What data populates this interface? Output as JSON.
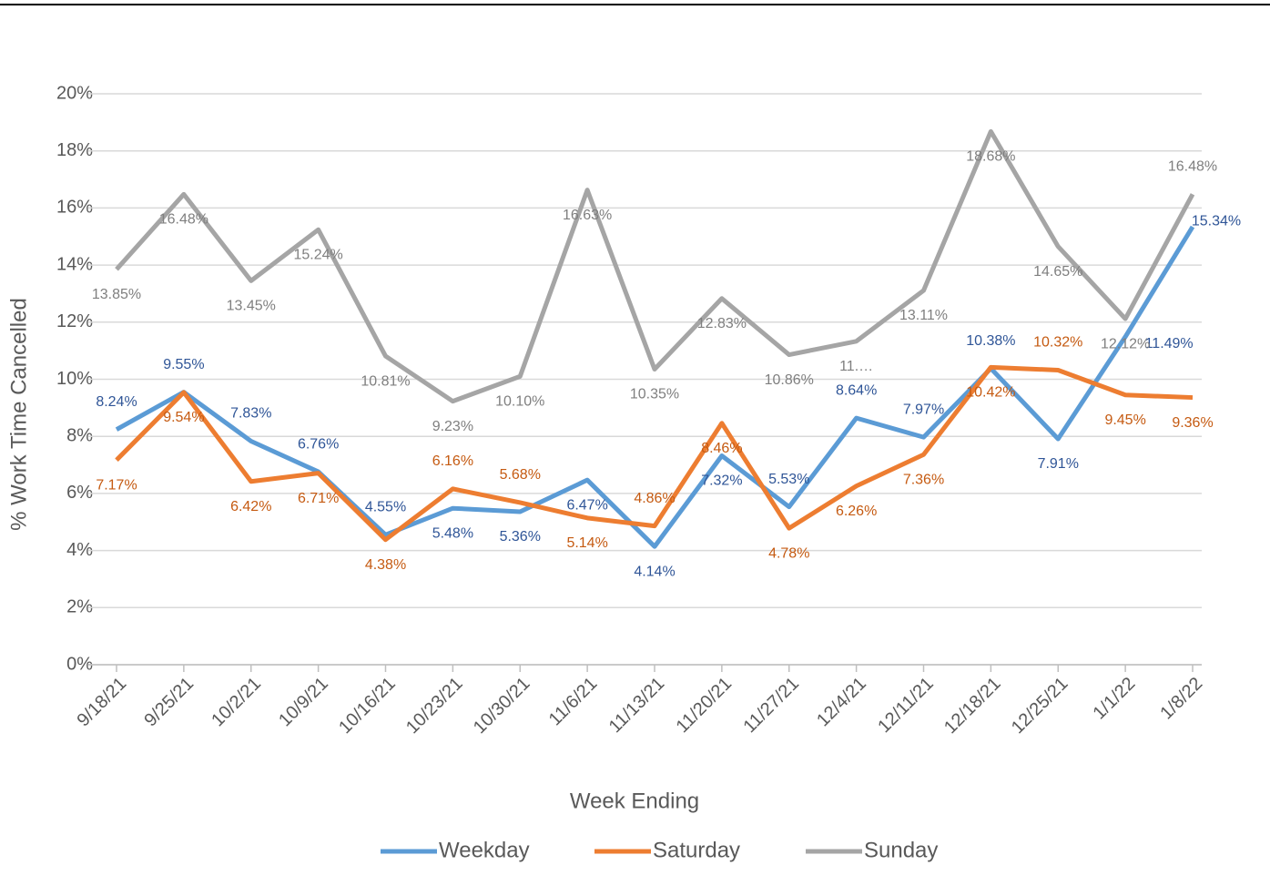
{
  "chart_data": {
    "type": "line",
    "x_label": "Week Ending",
    "y_label": "% Work Time Cancelled",
    "categories": [
      "9/18/21",
      "9/25/21",
      "10/2/21",
      "10/9/21",
      "10/16/21",
      "10/23/21",
      "10/30/21",
      "11/6/21",
      "11/13/21",
      "11/20/21",
      "11/27/21",
      "12/4/21",
      "12/11/21",
      "12/18/21",
      "12/25/21",
      "1/1/22",
      "1/8/22"
    ],
    "series": [
      {
        "name": "Weekday",
        "color": "#5b9bd5",
        "values": [
          8.24,
          9.55,
          7.83,
          6.76,
          4.55,
          5.48,
          5.36,
          6.47,
          4.14,
          7.32,
          5.53,
          8.64,
          7.97,
          10.38,
          7.91,
          11.49,
          15.34
        ],
        "value_labels": [
          "8.24%",
          "9.55%",
          "7.83%",
          "6.76%",
          "4.55%",
          "5.48%",
          "5.36%",
          "6.47%",
          "4.14%",
          "7.32%",
          "5.53%",
          "8.64%",
          "7.97%",
          "10.38%",
          "7.91%",
          "11.49%",
          "15.34%"
        ]
      },
      {
        "name": "Saturday",
        "color": "#ed7d31",
        "values": [
          7.17,
          9.54,
          6.42,
          6.71,
          4.38,
          6.16,
          5.68,
          5.14,
          4.86,
          8.46,
          4.78,
          6.26,
          7.36,
          10.42,
          10.32,
          9.45,
          9.36
        ],
        "value_labels": [
          "7.17%",
          "9.54%",
          "6.42%",
          "6.71%",
          "4.38%",
          "6.16%",
          "5.68%",
          "5.14%",
          "4.86%",
          "8.46%",
          "4.78%",
          "6.26%",
          "7.36%",
          "10.42%",
          "10.32%",
          "9.45%",
          "9.36%"
        ]
      },
      {
        "name": "Sunday",
        "color": "#a5a5a5",
        "values": [
          13.85,
          16.48,
          13.45,
          15.24,
          10.81,
          9.23,
          10.1,
          16.63,
          10.35,
          12.83,
          10.86,
          11.33,
          13.11,
          18.68,
          14.65,
          12.12,
          16.48
        ],
        "value_labels": [
          "13.85%",
          "16.48%",
          "13.45%",
          "15.24%",
          "10.81%",
          "9.23%",
          "10.10%",
          "16.63%",
          "10.35%",
          "12.83%",
          "10.86%",
          "11.…",
          "13.11%",
          "18.68%",
          "14.65%",
          "12.12%",
          "16.48%"
        ]
      }
    ],
    "ylim": [
      0,
      20
    ],
    "yticks": [
      {
        "value": 0,
        "label": "0%"
      },
      {
        "value": 2,
        "label": "2%"
      },
      {
        "value": 4,
        "label": "4%"
      },
      {
        "value": 6,
        "label": "6%"
      },
      {
        "value": 8,
        "label": "8%"
      },
      {
        "value": 10,
        "label": "10%"
      },
      {
        "value": 12,
        "label": "12%"
      },
      {
        "value": 14,
        "label": "14%"
      },
      {
        "value": 16,
        "label": "16%"
      },
      {
        "value": 18,
        "label": "18%"
      },
      {
        "value": 20,
        "label": "20%"
      }
    ],
    "grid": true,
    "legend": "bottom"
  }
}
